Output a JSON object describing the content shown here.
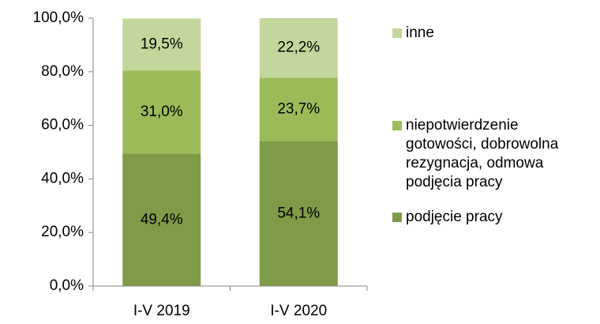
{
  "chart_data": {
    "type": "stacked_bar",
    "categories": [
      "I-V 2019",
      "I-V 2020"
    ],
    "series": [
      {
        "name": "podjęcie pracy",
        "color": "#7f9b48",
        "values": [
          49.4,
          54.1
        ],
        "value_labels": [
          "49,4%",
          "54,1%"
        ]
      },
      {
        "name": "niepotwierdzenie gotowości, dobrowolna rezygnacja, odmowa podjęcia pracy",
        "color": "#9bbb59",
        "values": [
          31.0,
          23.7
        ],
        "value_labels": [
          "31,0%",
          "23,7%"
        ]
      },
      {
        "name": "inne",
        "color": "#c3d69b",
        "values": [
          19.5,
          22.2
        ],
        "value_labels": [
          "19,5%",
          "22,2%"
        ]
      }
    ],
    "ylim": [
      0,
      100
    ],
    "yticks": [
      {
        "value": 0,
        "label": "0,0%"
      },
      {
        "value": 20,
        "label": "20,0%"
      },
      {
        "value": 40,
        "label": "40,0%"
      },
      {
        "value": 60,
        "label": "60,0%"
      },
      {
        "value": 80,
        "label": "80,0%"
      },
      {
        "value": 100,
        "label": "100,0%"
      }
    ],
    "grid": false,
    "legend": "right"
  }
}
